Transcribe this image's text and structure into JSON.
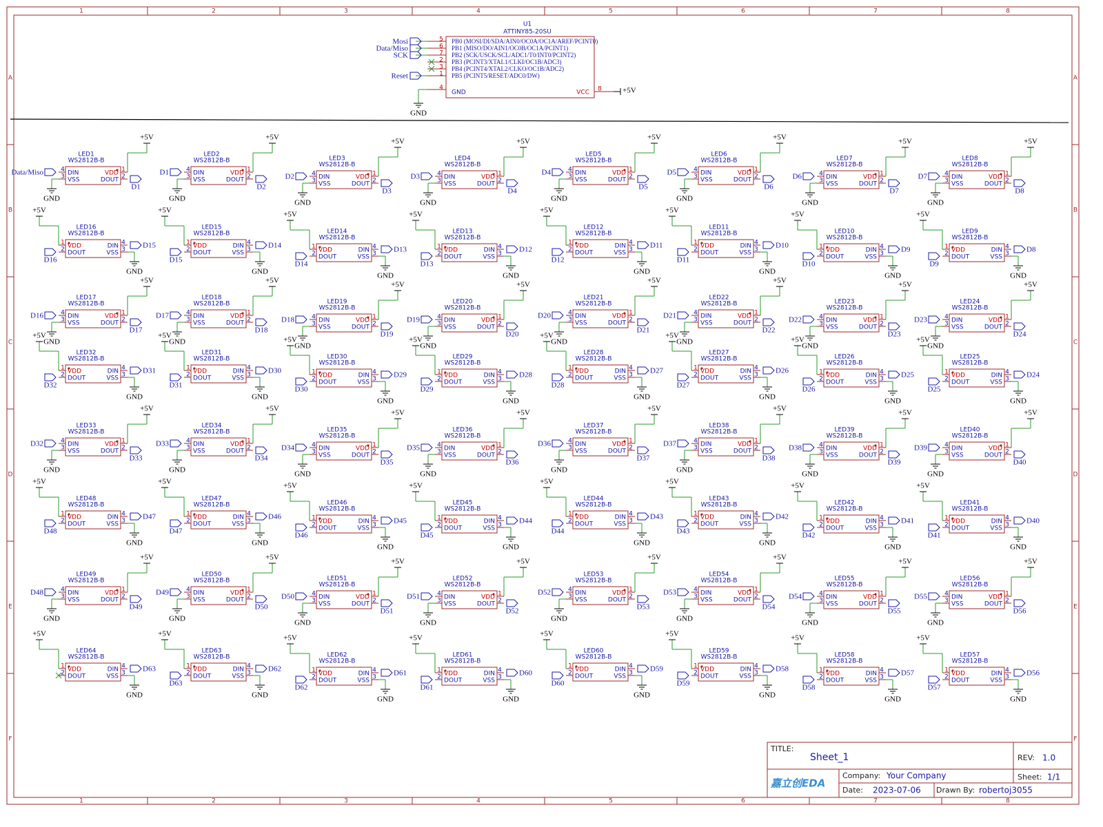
{
  "frame": {
    "columns": [
      "1",
      "2",
      "3",
      "4",
      "5",
      "6",
      "7",
      "8"
    ],
    "rows": [
      "A",
      "B",
      "C",
      "D",
      "E",
      "F"
    ]
  },
  "mcu": {
    "ref": "U1",
    "part": "ATTINY85-20SU",
    "pins": [
      {
        "number": "5",
        "name": "PB0 (MOSI/DI/SDA/AIN0/OC0A/OC1A/AREF/PCINT0)",
        "net": "Mosi"
      },
      {
        "number": "6",
        "name": "PB1 (MISO/DO/AIN1/OC0B/OC1A/PCINT1)",
        "net": "Data/Miso"
      },
      {
        "number": "7",
        "name": "PB2 (SCK/USCK/SCL/ADC1/T0/INT0/PCINT2)",
        "net": "SCK"
      },
      {
        "number": "2",
        "name": "PB3 (PCINT3/XTAL1/CLKI/OC1B/ADC3)"
      },
      {
        "number": "3",
        "name": "PB4 (PCINT4/XTAL2/CLKO/OC1B/ADC2)"
      },
      {
        "number": "1",
        "name": "PB5 (PCINT5/RESET/ADC0/DW)",
        "net": "Reset"
      }
    ],
    "gnd_pin": {
      "number": "4",
      "name": "GND"
    },
    "vcc_pin": {
      "number": "8",
      "name": "VCC"
    }
  },
  "power": {
    "vcc": "+5V",
    "gnd": "GND"
  },
  "led_symbol": {
    "part": "WS2812B-B",
    "pins": {
      "din": "DIN",
      "dout": "DOUT",
      "vdd": "VDD",
      "vss": "VSS"
    },
    "pin_numbers": {
      "vdd": "1",
      "dout": "2",
      "vss": "3",
      "din": "4"
    }
  },
  "leds": [
    {
      "ref": "LED1",
      "din": "Data/Miso",
      "dout": "D1"
    },
    {
      "ref": "LED2",
      "din": "D1",
      "dout": "D2"
    },
    {
      "ref": "LED3",
      "din": "D2",
      "dout": "D3"
    },
    {
      "ref": "LED4",
      "din": "D3",
      "dout": "D4"
    },
    {
      "ref": "LED5",
      "din": "D4",
      "dout": "D5"
    },
    {
      "ref": "LED6",
      "din": "D5",
      "dout": "D6"
    },
    {
      "ref": "LED7",
      "din": "D6",
      "dout": "D7"
    },
    {
      "ref": "LED8",
      "din": "D7",
      "dout": "D8"
    },
    {
      "ref": "LED9",
      "din": "D8",
      "dout": "D9"
    },
    {
      "ref": "LED10",
      "din": "D9",
      "dout": "D10"
    },
    {
      "ref": "LED11",
      "din": "D10",
      "dout": "D11"
    },
    {
      "ref": "LED12",
      "din": "D11",
      "dout": "D12"
    },
    {
      "ref": "LED13",
      "din": "D12",
      "dout": "D13"
    },
    {
      "ref": "LED14",
      "din": "D13",
      "dout": "D14"
    },
    {
      "ref": "LED15",
      "din": "D14",
      "dout": "D15"
    },
    {
      "ref": "LED16",
      "din": "D15",
      "dout": "D16"
    },
    {
      "ref": "LED17",
      "din": "D16",
      "dout": "D17"
    },
    {
      "ref": "LED18",
      "din": "D17",
      "dout": "D18"
    },
    {
      "ref": "LED19",
      "din": "D18",
      "dout": "D19"
    },
    {
      "ref": "LED20",
      "din": "D19",
      "dout": "D20"
    },
    {
      "ref": "LED21",
      "din": "D20",
      "dout": "D21"
    },
    {
      "ref": "LED22",
      "din": "D21",
      "dout": "D22"
    },
    {
      "ref": "LED23",
      "din": "D22",
      "dout": "D23"
    },
    {
      "ref": "LED24",
      "din": "D23",
      "dout": "D24"
    },
    {
      "ref": "LED25",
      "din": "D24",
      "dout": "D25"
    },
    {
      "ref": "LED26",
      "din": "D25",
      "dout": "D26"
    },
    {
      "ref": "LED27",
      "din": "D26",
      "dout": "D27"
    },
    {
      "ref": "LED28",
      "din": "D27",
      "dout": "D28"
    },
    {
      "ref": "LED29",
      "din": "D28",
      "dout": "D29"
    },
    {
      "ref": "LED30",
      "din": "D29",
      "dout": "D30"
    },
    {
      "ref": "LED31",
      "din": "D30",
      "dout": "D31"
    },
    {
      "ref": "LED32",
      "din": "D31",
      "dout": "D32"
    },
    {
      "ref": "LED33",
      "din": "D32",
      "dout": "D33"
    },
    {
      "ref": "LED34",
      "din": "D33",
      "dout": "D34"
    },
    {
      "ref": "LED35",
      "din": "D34",
      "dout": "D35"
    },
    {
      "ref": "LED36",
      "din": "D35",
      "dout": "D36"
    },
    {
      "ref": "LED37",
      "din": "D36",
      "dout": "D37"
    },
    {
      "ref": "LED38",
      "din": "D37",
      "dout": "D38"
    },
    {
      "ref": "LED39",
      "din": "D38",
      "dout": "D39"
    },
    {
      "ref": "LED40",
      "din": "D39",
      "dout": "D40"
    },
    {
      "ref": "LED41",
      "din": "D40",
      "dout": "D41"
    },
    {
      "ref": "LED42",
      "din": "D41",
      "dout": "D42"
    },
    {
      "ref": "LED43",
      "din": "D42",
      "dout": "D43"
    },
    {
      "ref": "LED44",
      "din": "D43",
      "dout": "D44"
    },
    {
      "ref": "LED45",
      "din": "D44",
      "dout": "D45"
    },
    {
      "ref": "LED46",
      "din": "D45",
      "dout": "D46"
    },
    {
      "ref": "LED47",
      "din": "D46",
      "dout": "D47"
    },
    {
      "ref": "LED48",
      "din": "D47",
      "dout": "D48"
    },
    {
      "ref": "LED49",
      "din": "D48",
      "dout": "D49"
    },
    {
      "ref": "LED50",
      "din": "D49",
      "dout": "D50"
    },
    {
      "ref": "LED51",
      "din": "D50",
      "dout": "D51"
    },
    {
      "ref": "LED52",
      "din": "D51",
      "dout": "D52"
    },
    {
      "ref": "LED53",
      "din": "D52",
      "dout": "D53"
    },
    {
      "ref": "LED54",
      "din": "D53",
      "dout": "D54"
    },
    {
      "ref": "LED55",
      "din": "D54",
      "dout": "D55"
    },
    {
      "ref": "LED56",
      "din": "D55",
      "dout": "D56"
    },
    {
      "ref": "LED57",
      "din": "D56",
      "dout": "D57"
    },
    {
      "ref": "LED58",
      "din": "D57",
      "dout": "D58"
    },
    {
      "ref": "LED59",
      "din": "D58",
      "dout": "D59"
    },
    {
      "ref": "LED60",
      "din": "D59",
      "dout": "D60"
    },
    {
      "ref": "LED61",
      "din": "D60",
      "dout": "D61"
    },
    {
      "ref": "LED62",
      "din": "D61",
      "dout": "D62"
    },
    {
      "ref": "LED63",
      "din": "D62",
      "dout": "D63"
    },
    {
      "ref": "LED64",
      "din": "D63"
    }
  ],
  "title_block": {
    "title_label": "TITLE:",
    "title": "Sheet_1",
    "rev_label": "REV:",
    "rev": "1.0",
    "company_label": "Company:",
    "company": "Your Company",
    "sheet_label": "Sheet:",
    "sheet": "1/1",
    "date_label": "Date:",
    "date": "2023-07-06",
    "drawn_by_label": "Drawn By:",
    "drawn_by": "robertoj3055",
    "logo": "嘉立创EDA"
  }
}
